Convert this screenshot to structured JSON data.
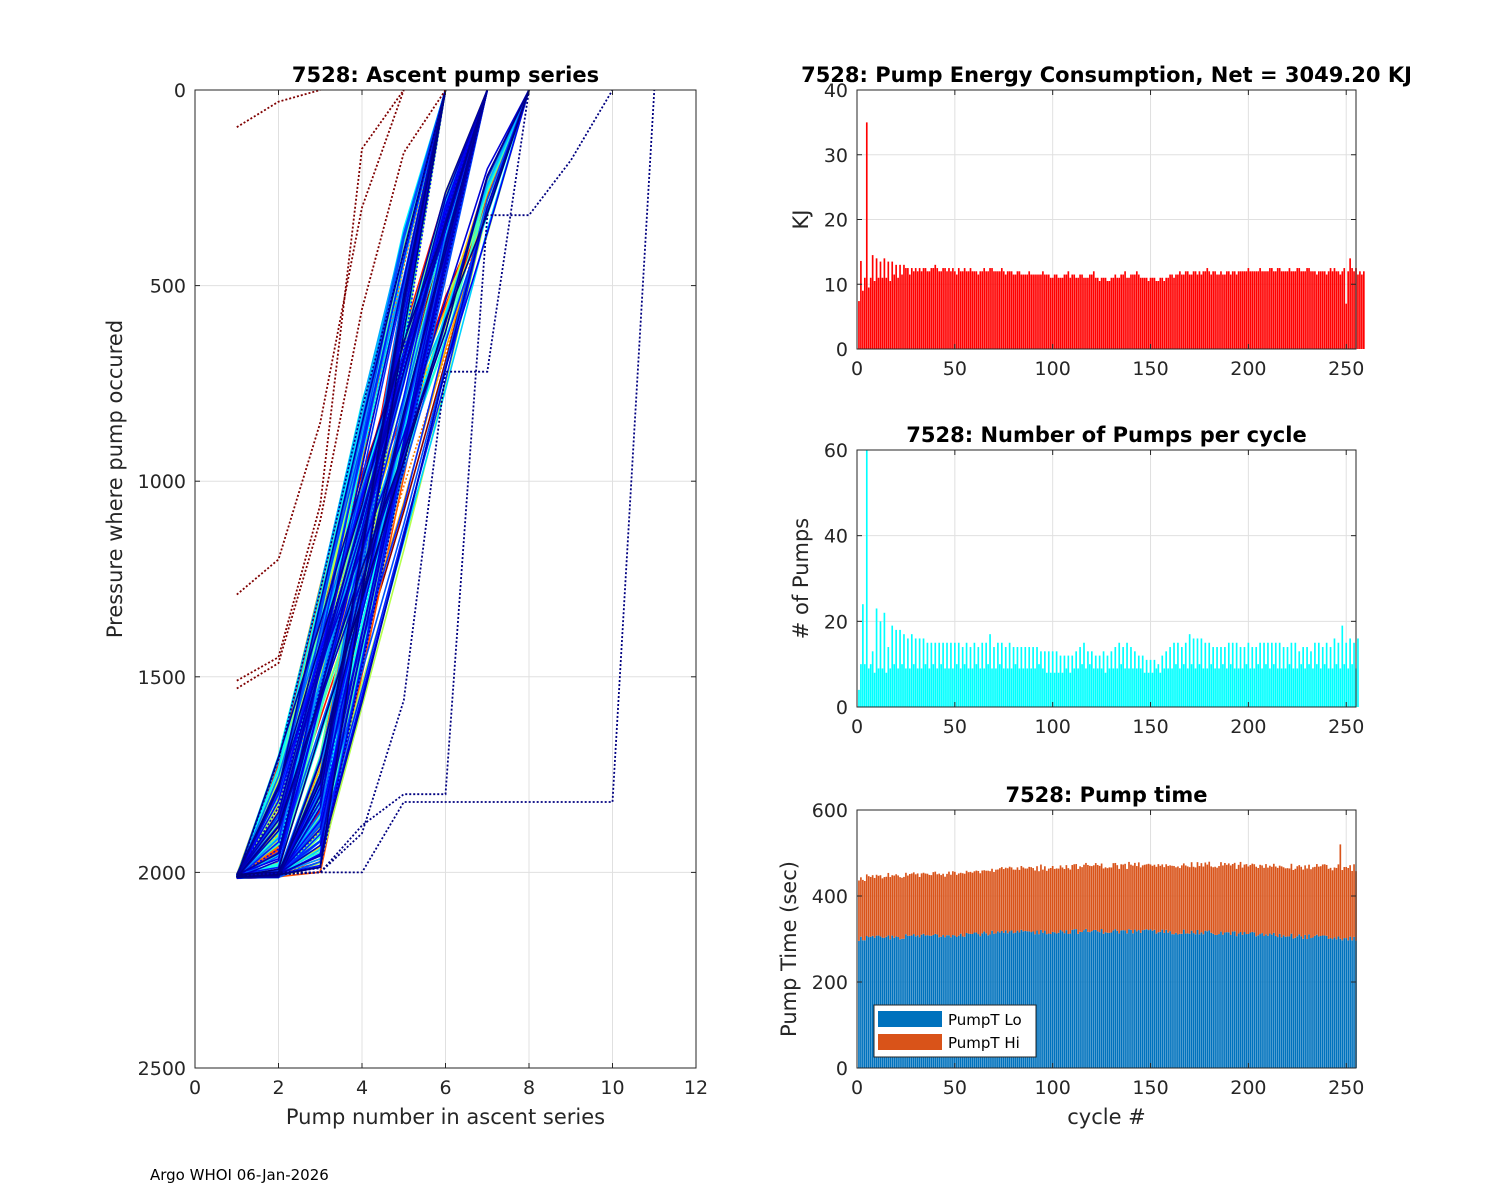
{
  "footer": "Argo WHOI 06-Jan-2026",
  "chart_data": [
    {
      "type": "line",
      "title": "7528: Ascent pump series",
      "xlabel": "Pump number in ascent series",
      "ylabel": "Pressure where pump occured",
      "xlim": [
        0,
        12
      ],
      "ylim": [
        0,
        2500
      ],
      "y_reversed": true,
      "xticks": [
        "0",
        "2",
        "4",
        "6",
        "8",
        "10",
        "12"
      ],
      "yticks": [
        "0",
        "500",
        "1000",
        "1500",
        "2000",
        "2500"
      ],
      "grid": true,
      "series": [
        {
          "name": "profile-early-1",
          "color": "#800000",
          "dotted": true,
          "x": [
            1,
            2,
            3,
            4,
            5,
            6
          ],
          "y": [
            1530,
            1465,
            1100,
            560,
            160,
            0
          ]
        },
        {
          "name": "profile-early-2",
          "color": "#800000",
          "dotted": true,
          "x": [
            1,
            2,
            3,
            4,
            5
          ],
          "y": [
            1510,
            1450,
            1060,
            150,
            0
          ]
        },
        {
          "name": "profile-early-3",
          "color": "#800000",
          "dotted": true,
          "x": [
            1,
            2,
            3,
            4,
            5
          ],
          "y": [
            1290,
            1200,
            850,
            300,
            0
          ]
        },
        {
          "name": "profile-early-4",
          "color": "#800000",
          "dotted": true,
          "x": [
            1,
            2,
            3
          ],
          "y": [
            95,
            30,
            0
          ]
        },
        {
          "name": "profile-late-1",
          "color": "#000080",
          "dotted": true,
          "x": [
            1,
            2,
            3,
            4,
            5,
            10,
            11
          ],
          "y": [
            2005,
            2000,
            2000,
            2000,
            1820,
            1820,
            0
          ]
        },
        {
          "name": "profile-late-2",
          "color": "#000080",
          "dotted": true,
          "x": [
            1,
            2,
            3,
            4,
            5,
            6,
            7,
            8,
            9,
            10
          ],
          "y": [
            2010,
            2005,
            2000,
            1880,
            1800,
            1800,
            320,
            320,
            180,
            0
          ]
        },
        {
          "name": "profile-late-3",
          "color": "#000080",
          "dotted": true,
          "x": [
            1,
            2,
            3,
            4,
            5,
            6,
            7,
            8
          ],
          "y": [
            2010,
            2005,
            2000,
            1900,
            1560,
            720,
            720,
            0
          ]
        }
      ]
    },
    {
      "type": "bar",
      "title": "7528: Pump Energy Consumption,  Net = 3049.20 KJ",
      "xlabel": "",
      "ylabel": "KJ",
      "xlim": [
        0,
        255
      ],
      "ylim": [
        0,
        40
      ],
      "xticks": [
        "0",
        "50",
        "100",
        "150",
        "200",
        "250"
      ],
      "yticks": [
        "0",
        "10",
        "20",
        "30",
        "40"
      ],
      "grid": true,
      "color": "#ff0000",
      "cycles": 255,
      "values": [
        7.4,
        13.6,
        9.0,
        11.0,
        35.0,
        9.5,
        11.0,
        14.5,
        10.5,
        14.0,
        11.0,
        13.5,
        11.0,
        14.0,
        11.0,
        13.5,
        10.5,
        13.5,
        11.5,
        13.0,
        11.0,
        13.0,
        11.5,
        13.0,
        12.5,
        12.5,
        11.5,
        12.5,
        12.0,
        12.5,
        12.0,
        12.5,
        12.0,
        12.5,
        12.5,
        12.0,
        12.0,
        12.5,
        12.5,
        13.0,
        12.5,
        12.0,
        12.0,
        12.5,
        12.5,
        12.0,
        12.5,
        12.0,
        12.5,
        12.0,
        11.5,
        12.5,
        12.0,
        12.0,
        12.5,
        12.0,
        12.0,
        12.5,
        12.0,
        12.0,
        12.0,
        11.5,
        12.0,
        12.0,
        12.5,
        12.0,
        12.0,
        12.5,
        12.5,
        12.0,
        12.0,
        12.0,
        12.0,
        12.5,
        12.0,
        11.5,
        12.0,
        12.0,
        12.0,
        11.5,
        11.5,
        12.0,
        12.0,
        11.5,
        11.5,
        11.5,
        11.5,
        12.0,
        11.5,
        11.5,
        11.5,
        11.5,
        11.5,
        11.5,
        12.0,
        11.5,
        11.5,
        11.5,
        11.0,
        11.0,
        11.5,
        11.5,
        11.0,
        11.0,
        11.0,
        11.5,
        11.5,
        12.0,
        11.0,
        11.5,
        11.5,
        11.0,
        11.0,
        11.5,
        11.5,
        11.0,
        11.0,
        11.0,
        11.5,
        11.5,
        12.0,
        11.0,
        11.0,
        10.5,
        11.0,
        11.0,
        11.0,
        10.5,
        10.5,
        11.0,
        11.0,
        11.5,
        11.0,
        11.0,
        11.5,
        11.5,
        12.0,
        11.0,
        11.0,
        11.5,
        11.5,
        11.5,
        12.0,
        11.5,
        11.0,
        11.0,
        11.0,
        11.0,
        10.5,
        11.0,
        11.0,
        11.0,
        10.5,
        10.5,
        11.0,
        11.0,
        10.5,
        11.0,
        11.0,
        11.5,
        11.5,
        11.0,
        11.5,
        11.5,
        12.0,
        11.5,
        11.5,
        12.0,
        12.0,
        11.5,
        11.5,
        12.0,
        12.0,
        11.5,
        12.0,
        11.5,
        12.0,
        12.0,
        12.5,
        12.0,
        11.5,
        12.0,
        12.0,
        11.5,
        11.5,
        12.0,
        11.5,
        11.5,
        12.0,
        12.0,
        11.5,
        12.0,
        12.0,
        11.5,
        12.0,
        12.0,
        12.0,
        12.0,
        12.0,
        12.5,
        12.0,
        12.0,
        12.0,
        12.0,
        12.0,
        12.5,
        12.0,
        12.0,
        12.0,
        12.0,
        12.5,
        12.5,
        12.0,
        12.0,
        12.5,
        12.5,
        12.0,
        12.0,
        12.0,
        12.0,
        12.5,
        12.0,
        12.0,
        12.0,
        12.5,
        12.5,
        12.0,
        12.0,
        12.0,
        12.5,
        12.5,
        12.0,
        12.0,
        12.0,
        11.5,
        12.0,
        12.0,
        12.0,
        12.0,
        11.5,
        12.0,
        12.5,
        12.0,
        12.5,
        12.0,
        12.0,
        11.5,
        12.0,
        12.5,
        7.0,
        12.0,
        14.0,
        12.5,
        12.0,
        12.5,
        11.5,
        12.0,
        11.5,
        12.0
      ]
    },
    {
      "type": "bar",
      "title": "7528: Number of Pumps per cycle",
      "xlabel": "",
      "ylabel": "# of Pumps",
      "xlim": [
        0,
        255
      ],
      "ylim": [
        0,
        60
      ],
      "xticks": [
        "0",
        "50",
        "100",
        "150",
        "200",
        "250"
      ],
      "yticks": [
        "0",
        "20",
        "40",
        "60"
      ],
      "grid": true,
      "color": "#00ffff",
      "cycles": 255,
      "values": [
        4,
        10,
        24,
        10,
        62,
        9,
        10,
        13,
        8,
        23,
        9,
        20,
        9,
        22,
        8,
        14,
        9,
        19,
        10,
        18,
        9,
        18,
        10,
        17,
        9,
        16,
        9,
        17,
        10,
        16,
        9,
        16,
        9,
        16,
        10,
        15,
        9,
        15,
        10,
        15,
        9,
        15,
        10,
        15,
        9,
        15,
        9,
        15,
        9,
        15,
        10,
        15,
        9,
        14,
        10,
        15,
        9,
        14,
        9,
        15,
        10,
        14,
        9,
        15,
        9,
        15,
        10,
        17,
        9,
        14,
        9,
        15,
        10,
        15,
        9,
        14,
        9,
        15,
        9,
        14,
        10,
        14,
        9,
        14,
        9,
        14,
        9,
        14,
        9,
        14,
        9,
        14,
        10,
        13,
        9,
        13,
        8,
        13,
        8,
        13,
        8,
        13,
        8,
        12,
        8,
        12,
        9,
        12,
        8,
        12,
        9,
        13,
        9,
        14,
        10,
        15,
        9,
        13,
        10,
        13,
        9,
        12,
        9,
        12,
        9,
        13,
        8,
        12,
        9,
        13,
        9,
        14,
        9,
        15,
        10,
        14,
        9,
        15,
        9,
        14,
        9,
        13,
        9,
        12,
        9,
        12,
        8,
        11,
        8,
        11,
        8,
        11,
        9,
        10,
        8,
        12,
        9,
        13,
        9,
        14,
        9,
        15,
        10,
        15,
        9,
        14,
        10,
        15,
        9,
        17,
        10,
        16,
        9,
        16,
        10,
        16,
        9,
        15,
        9,
        15,
        10,
        14,
        9,
        14,
        9,
        14,
        10,
        14,
        9,
        15,
        10,
        15,
        9,
        15,
        9,
        14,
        9,
        14,
        10,
        15,
        9,
        14,
        9,
        14,
        10,
        15,
        9,
        15,
        10,
        15,
        9,
        15,
        10,
        15,
        9,
        15,
        9,
        14,
        9,
        14,
        10,
        15,
        9,
        15,
        9,
        13,
        10,
        14,
        9,
        14,
        10,
        13,
        9,
        15,
        10,
        15,
        9,
        14,
        10,
        15,
        9,
        14,
        9,
        16,
        10,
        15,
        9,
        19,
        10,
        15,
        9,
        16,
        10,
        15,
        9,
        16
      ]
    },
    {
      "type": "bar",
      "subtype": "stacked",
      "title": "7528: Pump time",
      "xlabel": "cycle #",
      "ylabel": "Pump Time (sec)",
      "xlim": [
        0,
        255
      ],
      "ylim": [
        0,
        600
      ],
      "xticks": [
        "0",
        "50",
        "100",
        "150",
        "200",
        "250"
      ],
      "yticks": [
        "0",
        "200",
        "400",
        "600"
      ],
      "grid": true,
      "legend": "bottom-left",
      "cycles": 255,
      "series": [
        {
          "name": "PumpT Lo",
          "color": "#0072bd",
          "base": 300,
          "end": 300,
          "peak": 318
        },
        {
          "name": "PumpT Hi",
          "color": "#d95319",
          "base": 140,
          "end": 165,
          "spike_cycle": 247,
          "spike_total": 520
        }
      ]
    }
  ]
}
